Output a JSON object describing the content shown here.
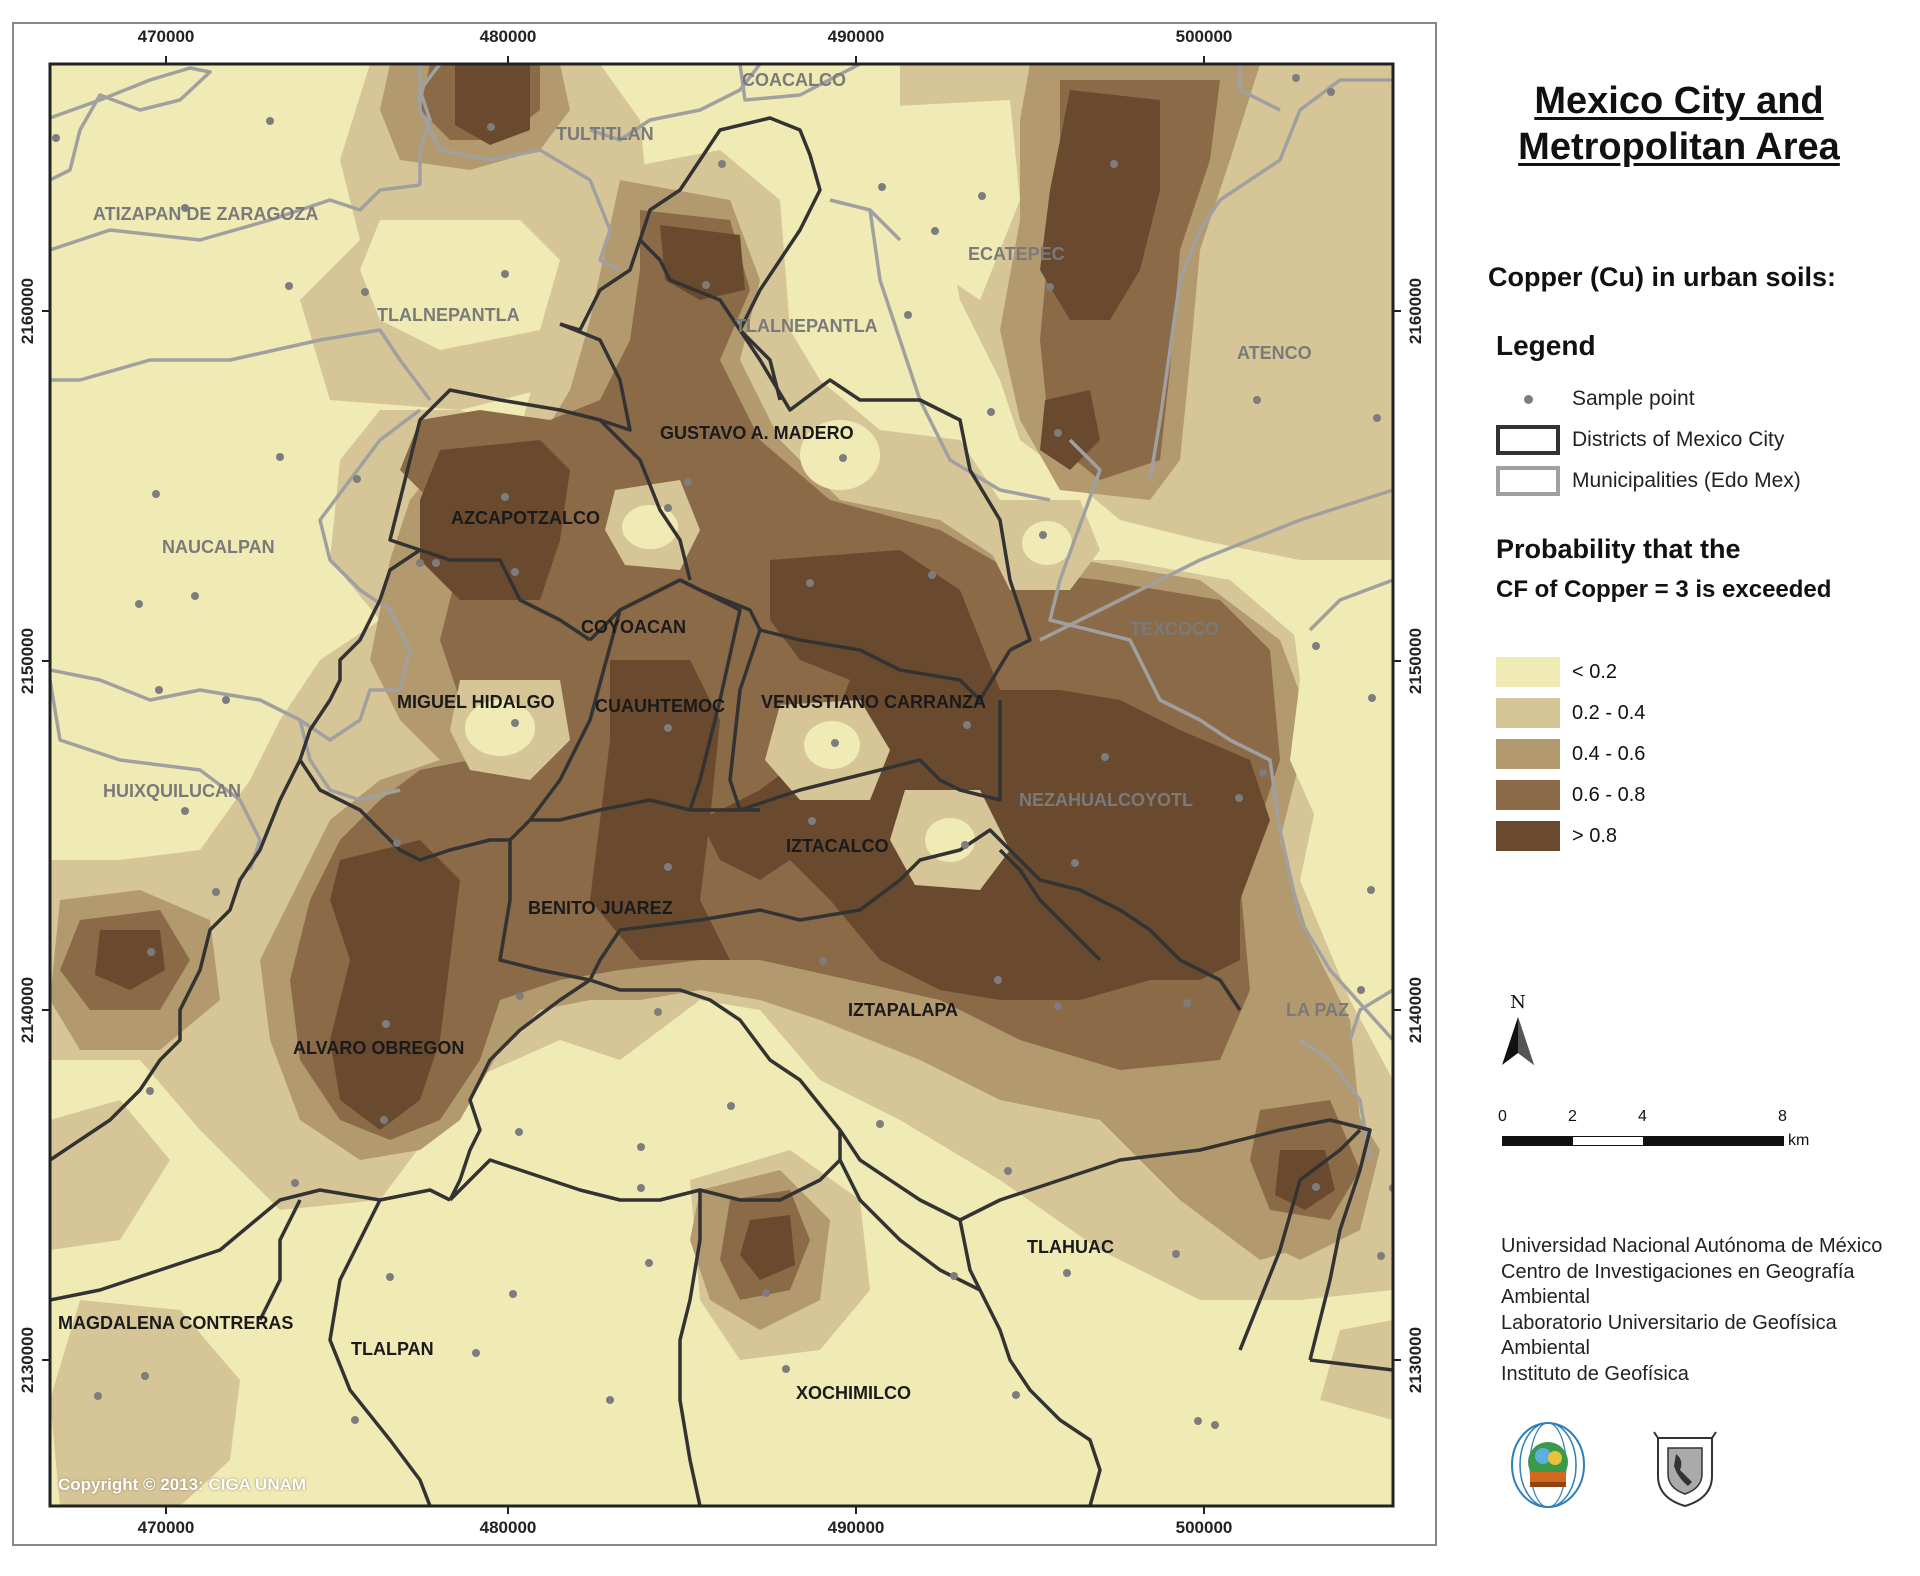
{
  "map": {
    "x_ticks": [
      "470000",
      "480000",
      "490000",
      "500000"
    ],
    "y_ticks": [
      "2160000",
      "2150000",
      "2140000",
      "2130000"
    ],
    "copyright": "Copyright © 2013: CIGA UNAM",
    "districts": [
      "GUSTAVO A. MADERO",
      "AZCAPOTZALCO",
      "COYOACAN",
      "MIGUEL HIDALGO",
      "CUAUHTEMOC",
      "VENUSTIANO CARRANZA",
      "IZTACALCO",
      "BENITO JUAREZ",
      "IZTAPALAPA",
      "ALVARO OBREGON",
      "TLAHUAC",
      "MAGDALENA CONTRERAS",
      "TLALPAN",
      "XOCHIMILCO"
    ],
    "municipalities": [
      "COACALCO",
      "TULTITLAN",
      "ATIZAPAN DE ZARAGOZA",
      "ECATEPEC",
      "TLALNEPANTLA",
      "TLALNEPANTLA",
      "ATENCO",
      "NAUCALPAN",
      "TEXCOCO",
      "HUIXQUILUCAN",
      "NEZAHUALCOYOTL",
      "LA PAZ"
    ],
    "colors": {
      "lt02": "#f0ebb4",
      "c02_04": "#d6c597",
      "c04_06": "#b39a6e",
      "c06_08": "#8a6a47",
      "gt08": "#6a4a2f",
      "district_border": "#333333",
      "municipality_border": "#a0a0a0",
      "sample_point": "#7d7d7d"
    }
  },
  "sidebar": {
    "title_line1": "Mexico City and",
    "title_line2": "Metropolitan Area",
    "subtitle": "Copper (Cu) in urban soils:",
    "legend_heading": "Legend",
    "legend": [
      {
        "label": "Sample point",
        "icon": "dot"
      },
      {
        "label": "Districts of Mexico City",
        "icon": "dark-box"
      },
      {
        "label": "Municipalities (Edo Mex)",
        "icon": "grey-box"
      }
    ],
    "prob_heading_1": "Probability that the",
    "prob_heading_2": "CF of Copper = 3 is exceeded",
    "classes": [
      {
        "label": "< 0.2",
        "color": "#f0ebb4"
      },
      {
        "label": "0.2 - 0.4",
        "color": "#d6c597"
      },
      {
        "label": "0.4 - 0.6",
        "color": "#b39a6e"
      },
      {
        "label": "0.6 - 0.8",
        "color": "#8a6a47"
      },
      {
        "label": "> 0.8",
        "color": "#6a4a2f"
      }
    ],
    "north": "N",
    "scale": {
      "labels": [
        "0",
        "2",
        "4",
        "8"
      ],
      "unit": "km"
    },
    "institutions": [
      "Universidad Nacional Autónoma de México",
      "Centro de Investigaciones en Geografía",
      "Ambiental",
      "Laboratorio Universitario de Geofísica",
      "Ambiental",
      "Instituto de Geofísica"
    ]
  }
}
